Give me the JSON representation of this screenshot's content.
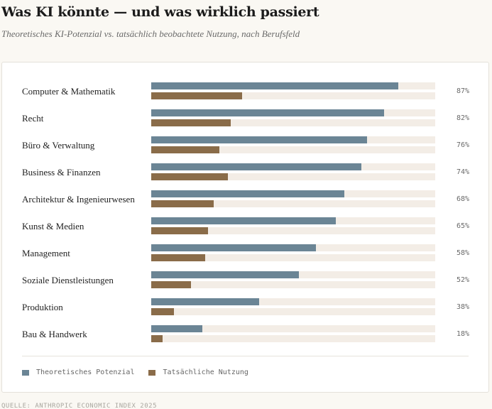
{
  "header": {
    "title": "Was KI könnte — und was wirklich passiert",
    "subtitle": "Theoretisches KI-Potenzial vs. tatsächlich beobachtete Nutzung, nach Berufsfeld"
  },
  "colors": {
    "potential": "#6b8595",
    "actual": "#8a6c49",
    "track": "#f3ede6"
  },
  "chart_data": {
    "type": "bar",
    "orientation": "horizontal",
    "categories": [
      "Computer & Mathematik",
      "Recht",
      "Büro & Verwaltung",
      "Business & Finanzen",
      "Architektur & Ingenieurwesen",
      "Kunst & Medien",
      "Management",
      "Soziale Dienstleistungen",
      "Produktion",
      "Bau & Handwerk"
    ],
    "series": [
      {
        "name": "Theoretisches Potenzial",
        "values": [
          87,
          82,
          76,
          74,
          68,
          65,
          58,
          52,
          38,
          18
        ]
      },
      {
        "name": "Tatsächliche Nutzung",
        "values": [
          32,
          28,
          24,
          27,
          22,
          20,
          19,
          14,
          8,
          4
        ]
      }
    ],
    "value_labels": [
      "87%",
      "82%",
      "76%",
      "74%",
      "68%",
      "65%",
      "58%",
      "52%",
      "38%",
      "18%"
    ],
    "xlim": [
      0,
      100
    ],
    "legend": "bottom-left"
  },
  "legend": {
    "potential_label": "Theoretisches Potenzial",
    "actual_label": "Tatsächliche Nutzung"
  },
  "footer": {
    "source": "QUELLE: ANTHROPIC ECONOMIC INDEX 2025"
  }
}
